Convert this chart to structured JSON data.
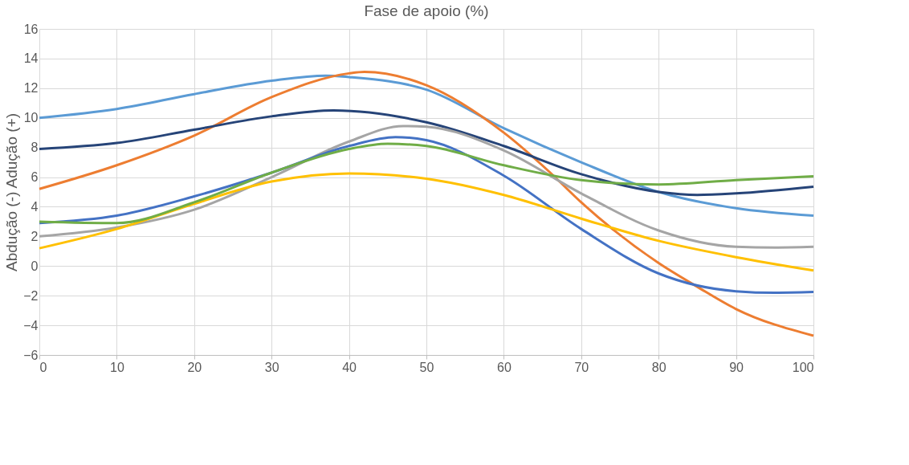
{
  "chart_data": {
    "type": "line",
    "title": "Fase de apoio (%)",
    "ylabel": "Abdução (-) Adução (+)",
    "xlim": [
      0,
      100
    ],
    "xticks": [
      0,
      10,
      20,
      30,
      40,
      50,
      60,
      70,
      80,
      90,
      100
    ],
    "ylim": [
      -6,
      16
    ],
    "yticks": [
      -6,
      -4,
      -2,
      0,
      2,
      4,
      6,
      8,
      10,
      12,
      14,
      16
    ],
    "grid": true,
    "legend": false,
    "marker": "none",
    "line_style": "solid",
    "series": [
      {
        "color": "#5b9bd5",
        "x": [
          0,
          10,
          20,
          30,
          37,
          40,
          50,
          60,
          70,
          80,
          90,
          100
        ],
        "values": [
          10.0,
          10.6,
          11.6,
          12.5,
          12.85,
          12.75,
          11.9,
          9.3,
          7.0,
          5.0,
          3.9,
          3.4
        ]
      },
      {
        "color": "#ed7d31",
        "x": [
          0,
          10,
          20,
          30,
          40,
          42,
          50,
          60,
          66,
          70,
          80,
          85,
          90,
          100
        ],
        "values": [
          5.2,
          6.8,
          8.8,
          11.4,
          13.0,
          13.1,
          12.2,
          9.0,
          6.3,
          4.3,
          0.2,
          -1.4,
          -2.9,
          -4.7
        ]
      },
      {
        "color": "#264478",
        "x": [
          0,
          10,
          20,
          30,
          38,
          50,
          60,
          70,
          80,
          85,
          90,
          100
        ],
        "values": [
          7.9,
          8.3,
          9.2,
          10.1,
          10.5,
          9.7,
          8.1,
          6.2,
          5.0,
          4.8,
          4.9,
          5.35
        ]
      },
      {
        "color": "#a5a5a5",
        "x": [
          0,
          10,
          20,
          30,
          40,
          47,
          50,
          60,
          70,
          80,
          90,
          95,
          100
        ],
        "values": [
          2.0,
          2.6,
          3.8,
          6.0,
          8.4,
          9.45,
          9.4,
          7.8,
          4.9,
          2.4,
          1.3,
          1.25,
          1.3
        ]
      },
      {
        "color": "#4472c4",
        "x": [
          0,
          10,
          20,
          30,
          40,
          46,
          50,
          60,
          70,
          80,
          90,
          95,
          100
        ],
        "values": [
          2.9,
          3.4,
          4.7,
          6.3,
          8.1,
          8.7,
          8.5,
          6.1,
          2.5,
          -0.5,
          -1.7,
          -1.8,
          -1.75
        ]
      },
      {
        "color": "#ffc000",
        "x": [
          0,
          10,
          20,
          30,
          40,
          50,
          60,
          70,
          80,
          90,
          100
        ],
        "values": [
          1.2,
          2.5,
          4.2,
          5.7,
          6.25,
          5.9,
          4.8,
          3.2,
          1.7,
          0.6,
          -0.3
        ]
      },
      {
        "color": "#70ad47",
        "x": [
          0,
          10,
          20,
          30,
          40,
          45,
          50,
          60,
          70,
          80,
          90,
          100
        ],
        "values": [
          3.0,
          2.9,
          4.3,
          6.3,
          7.9,
          8.25,
          8.1,
          6.8,
          5.8,
          5.5,
          5.8,
          6.05
        ]
      }
    ]
  }
}
